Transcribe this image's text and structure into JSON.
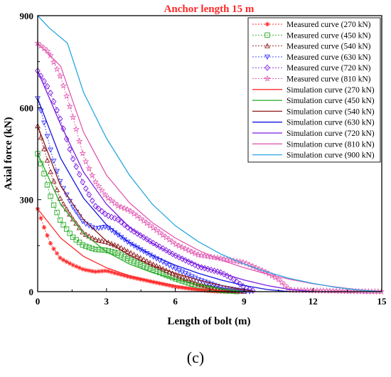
{
  "panel_label": "(c)",
  "chart_data": {
    "type": "line",
    "title": "Anchor length 15 m",
    "xlabel": "Length of bolt (m)",
    "ylabel": "Axial force (kN)",
    "xlim": [
      0,
      15
    ],
    "ylim": [
      0,
      900
    ],
    "xticks": [
      0,
      3,
      6,
      9,
      12,
      15
    ],
    "yticks": [
      0,
      300,
      600,
      900
    ],
    "grid": false,
    "legend_position": "top-right",
    "series": [
      {
        "name": "Measured curve (270 kN)",
        "kind": "measured",
        "color": "#ff2a2a",
        "marker": "asterisk",
        "x": [
          0,
          0.3,
          0.6,
          1,
          1.5,
          2,
          2.5,
          3,
          3.5,
          4,
          5,
          6,
          7,
          7.5,
          8,
          8.3
        ],
        "y": [
          270,
          205,
          150,
          108,
          88,
          72,
          65,
          68,
          58,
          48,
          32,
          16,
          6,
          2,
          0,
          0
        ]
      },
      {
        "name": "Measured curve (450 kN)",
        "kind": "measured",
        "color": "#22aa22",
        "marker": "square",
        "x": [
          0,
          0.3,
          0.6,
          1,
          1.5,
          2,
          2.5,
          3,
          3.5,
          4,
          5,
          6,
          7,
          8,
          8.8
        ],
        "y": [
          450,
          380,
          300,
          230,
          180,
          150,
          138,
          135,
          125,
          105,
          72,
          42,
          18,
          4,
          0
        ]
      },
      {
        "name": "Measured curve (540 kN)",
        "kind": "measured",
        "color": "#8b1a1a",
        "marker": "triangle-up",
        "x": [
          0,
          0.3,
          0.6,
          1,
          1.5,
          2,
          2.5,
          3,
          3.5,
          4,
          5,
          6,
          7,
          8,
          9
        ],
        "y": [
          540,
          460,
          380,
          300,
          240,
          190,
          170,
          162,
          148,
          128,
          90,
          55,
          25,
          6,
          0
        ]
      },
      {
        "name": "Measured curve (630 kN)",
        "kind": "measured",
        "color": "#3333ff",
        "marker": "triangle-down",
        "x": [
          0,
          0.3,
          0.6,
          1,
          1.5,
          2,
          2.5,
          3,
          3.5,
          4,
          5,
          6,
          7,
          8,
          9,
          9.3
        ],
        "y": [
          630,
          545,
          450,
          355,
          280,
          225,
          205,
          212,
          185,
          158,
          115,
          75,
          40,
          14,
          2,
          0
        ]
      },
      {
        "name": "Measured curve (720 kN)",
        "kind": "measured",
        "color": "#7a1de0",
        "marker": "diamond",
        "x": [
          0,
          0.5,
          1,
          1.5,
          2,
          2.5,
          3,
          3.5,
          4,
          5,
          6,
          7,
          8,
          8.5,
          9,
          9.5
        ],
        "y": [
          720,
          660,
          560,
          440,
          350,
          280,
          250,
          235,
          205,
          160,
          118,
          82,
          62,
          42,
          15,
          0
        ]
      },
      {
        "name": "Measured curve (810 kN)",
        "kind": "measured",
        "color": "#e25ab2",
        "marker": "star",
        "x": [
          0,
          0.5,
          1,
          1.5,
          2,
          2.5,
          3,
          3.5,
          4,
          5,
          6,
          7,
          8,
          9,
          10,
          10.5,
          11,
          14.5,
          15
        ],
        "y": [
          810,
          780,
          700,
          580,
          440,
          360,
          310,
          280,
          265,
          210,
          155,
          120,
          108,
          95,
          62,
          40,
          5,
          0,
          0
        ]
      },
      {
        "name": "Simulation curve (270 kN)",
        "kind": "simulation",
        "color": "#ff2a2a",
        "x": [
          0,
          1,
          2,
          3,
          4,
          5,
          6,
          7,
          8.5
        ],
        "y": [
          270,
          175,
          115,
          78,
          52,
          34,
          20,
          9,
          0
        ]
      },
      {
        "name": "Simulation curve (450 kN)",
        "kind": "simulation",
        "color": "#22aa22",
        "x": [
          0,
          1,
          2,
          3,
          4,
          5,
          6,
          7,
          8,
          9
        ],
        "y": [
          450,
          285,
          190,
          130,
          90,
          62,
          40,
          22,
          9,
          0
        ]
      },
      {
        "name": "Simulation curve (540 kN)",
        "kind": "simulation",
        "color": "#8b1a1a",
        "x": [
          0,
          1,
          2,
          3,
          4,
          5,
          6,
          7,
          8,
          9,
          9.5
        ],
        "y": [
          540,
          345,
          235,
          165,
          118,
          85,
          60,
          38,
          20,
          6,
          0
        ]
      },
      {
        "name": "Simulation curve (630 kN)",
        "kind": "simulation",
        "color": "#1414e0",
        "x": [
          0,
          1,
          2,
          3,
          4,
          5,
          6,
          7,
          8,
          9,
          10,
          11
        ],
        "y": [
          630,
          435,
          305,
          218,
          160,
          118,
          86,
          60,
          38,
          20,
          7,
          0
        ]
      },
      {
        "name": "Simulation curve (720 kN)",
        "kind": "simulation",
        "color": "#7a1de0",
        "x": [
          0,
          1,
          2,
          3,
          4,
          5,
          6,
          7,
          8,
          9,
          10,
          11,
          12
        ],
        "y": [
          720,
          545,
          390,
          285,
          210,
          158,
          118,
          86,
          60,
          38,
          20,
          7,
          0
        ]
      },
      {
        "name": "Simulation curve (810 kN)",
        "kind": "simulation",
        "color": "#e25ab2",
        "x": [
          0,
          1,
          2,
          3,
          4,
          5,
          6,
          7,
          8,
          9,
          10,
          11,
          12,
          13,
          14,
          15
        ],
        "y": [
          810,
          735,
          520,
          380,
          290,
          225,
          175,
          135,
          103,
          78,
          57,
          40,
          26,
          15,
          6,
          0
        ]
      },
      {
        "name": "Simulation curve (900 kN)",
        "kind": "simulation",
        "color": "#29a7e0",
        "x": [
          0,
          0.5,
          1.3,
          2,
          3,
          4,
          5,
          6,
          7,
          8,
          9,
          10,
          11,
          12,
          13,
          14,
          15
        ],
        "y": [
          900,
          860,
          810,
          650,
          500,
          380,
          285,
          215,
          163,
          122,
          90,
          64,
          43,
          27,
          14,
          5,
          0
        ]
      }
    ]
  }
}
